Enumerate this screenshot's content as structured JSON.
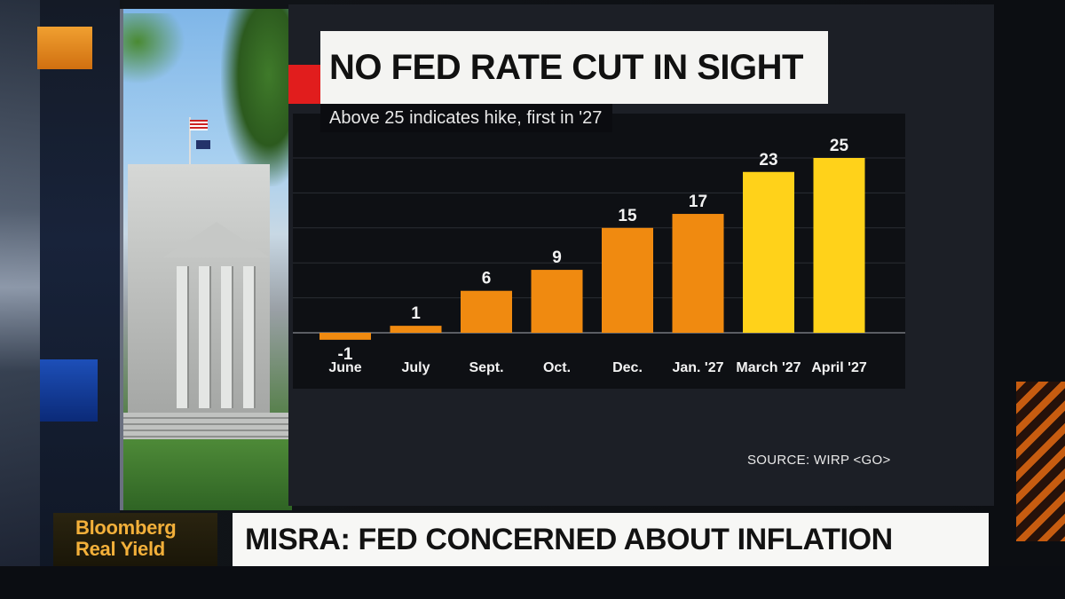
{
  "chart_data": {
    "type": "bar",
    "title": "NO FED RATE CUT IN SIGHT",
    "subtitle": "Above 25 indicates hike, first in '27",
    "categories": [
      "June",
      "July",
      "Sept.",
      "Oct.",
      "Dec.",
      "Jan. '27",
      "March '27",
      "April '27"
    ],
    "values": [
      -1,
      1,
      6,
      9,
      15,
      17,
      23,
      25
    ],
    "value_labels": [
      "-1",
      "1",
      "6",
      "9",
      "15",
      "17",
      "23",
      "25"
    ],
    "bar_colors": [
      "#f08a10",
      "#f08a10",
      "#f08a10",
      "#f08a10",
      "#f08a10",
      "#f08a10",
      "#ffd21a",
      "#ffd21a"
    ],
    "ylim": [
      -2,
      27
    ],
    "grid": true,
    "source": "SOURCE: WIRP <GO>"
  },
  "lower_third": {
    "brand_line1": "Bloomberg",
    "brand_line2": "Real Yield",
    "headline": "MISRA: FED CONCERNED ABOUT INFLATION"
  },
  "colors": {
    "accent_red": "#e11d1d",
    "bar_orange": "#f08a10",
    "bar_yellow": "#ffd21a",
    "brand_gold": "#f3b03a"
  }
}
